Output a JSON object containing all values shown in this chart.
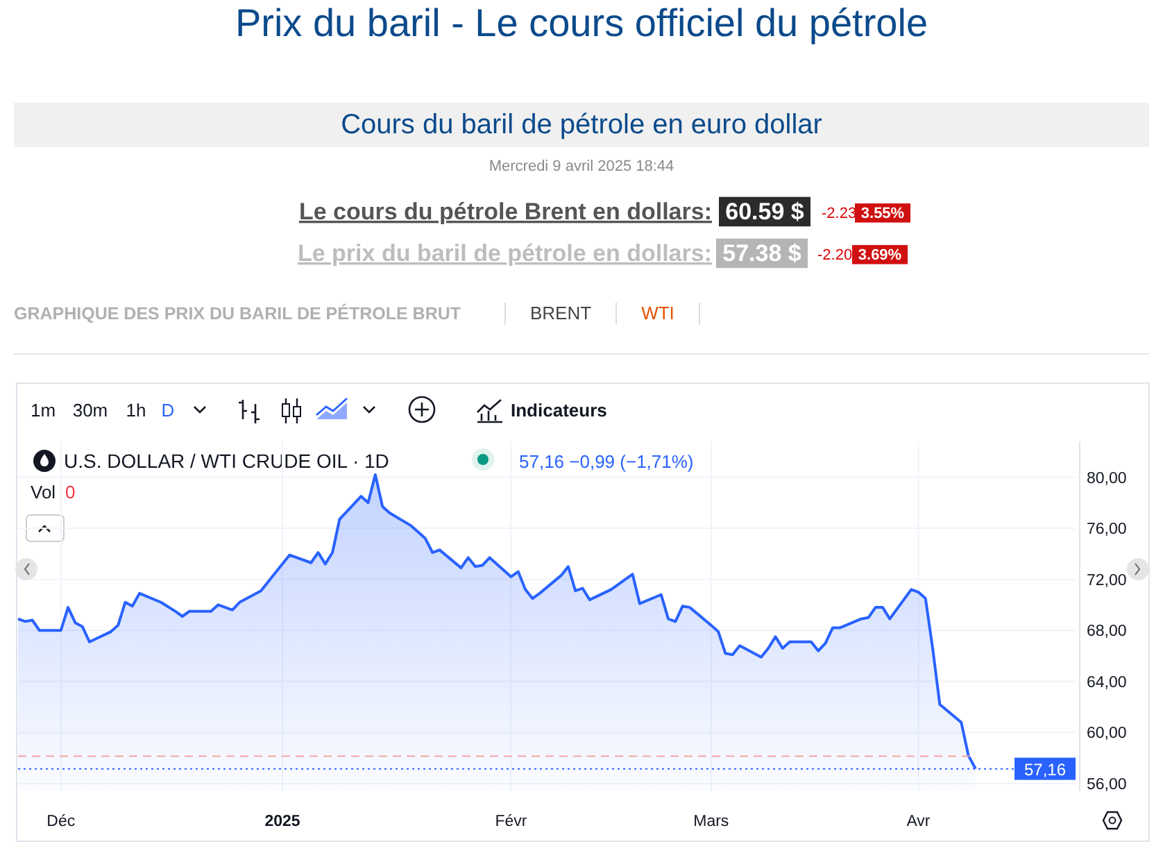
{
  "chart_data": {
    "type": "area",
    "title": "Prix du baril - Le cours officiel du pétrole",
    "subtitle": "Cours du baril de pétrole en euro dollar",
    "annotations": [
      "Mercredi 9 avril 2025 18:44",
      "Le cours du pétrole Brent en dollars:",
      "60.59 $",
      "-2.23",
      "3.55%",
      "Le prix du baril de pétrole en dollars:",
      "57.38 $",
      "-2.20",
      "3.69%",
      "GRAPHIQUE DES PRIX DU BARIL DE PÉTROLE BRUT",
      "BRENT",
      "WTI",
      "1m",
      "30m",
      "1h",
      "D",
      "Indicateurs",
      "U.S. DOLLAR / WTI CRUDE OIL · 1D",
      "57,16 −0,99 (−1,71%)",
      "Vol",
      "0"
    ],
    "x": [
      "2024-11-26",
      "2024-11-27",
      "2024-11-28",
      "2024-11-29",
      "2024-12-02",
      "2024-12-03",
      "2024-12-04",
      "2024-12-05",
      "2024-12-06",
      "2024-12-09",
      "2024-12-10",
      "2024-12-11",
      "2024-12-12",
      "2024-12-13",
      "2024-12-16",
      "2024-12-18",
      "2024-12-19",
      "2024-12-20",
      "2024-12-23",
      "2024-12-24",
      "2024-12-26",
      "2024-12-27",
      "2024-12-30",
      "2024-12-31",
      "2025-01-02",
      "2025-01-03",
      "2025-01-06",
      "2025-01-07",
      "2025-01-08",
      "2025-01-09",
      "2025-01-10",
      "2025-01-13",
      "2025-01-14",
      "2025-01-15",
      "2025-01-16",
      "2025-01-17",
      "2025-01-20",
      "2025-01-21",
      "2025-01-22",
      "2025-01-23",
      "2025-01-24",
      "2025-01-27",
      "2025-01-28",
      "2025-01-29",
      "2025-01-30",
      "2025-01-31",
      "2025-02-03",
      "2025-02-04",
      "2025-02-05",
      "2025-02-06",
      "2025-02-07",
      "2025-02-10",
      "2025-02-11",
      "2025-02-12",
      "2025-02-13",
      "2025-02-14",
      "2025-02-17",
      "2025-02-19",
      "2025-02-20",
      "2025-02-21",
      "2025-02-24",
      "2025-02-25",
      "2025-02-26",
      "2025-02-27",
      "2025-02-28",
      "2025-03-03",
      "2025-03-04",
      "2025-03-05",
      "2025-03-06",
      "2025-03-07",
      "2025-03-10",
      "2025-03-11",
      "2025-03-12",
      "2025-03-13",
      "2025-03-14",
      "2025-03-17",
      "2025-03-18",
      "2025-03-19",
      "2025-03-20",
      "2025-03-21",
      "2025-03-24",
      "2025-03-25",
      "2025-03-26",
      "2025-03-27",
      "2025-03-28",
      "2025-03-31",
      "2025-04-01",
      "2025-04-02",
      "2025-04-03",
      "2025-04-04",
      "2025-04-07",
      "2025-04-08",
      "2025-04-09"
    ],
    "series": [
      {
        "color": "#2962ff",
        "values": [
          68.9,
          68.7,
          68.8,
          68.0,
          68.0,
          69.8,
          68.6,
          68.3,
          67.1,
          67.9,
          68.4,
          70.2,
          69.9,
          70.9,
          70.2,
          69.5,
          69.1,
          69.5,
          69.5,
          70.0,
          69.6,
          70.2,
          71.1,
          71.8,
          73.2,
          73.9,
          73.3,
          74.1,
          73.2,
          74.1,
          76.7,
          78.5,
          78.0,
          80.2,
          77.7,
          77.2,
          76.2,
          75.7,
          75.2,
          74.1,
          74.3,
          72.9,
          73.7,
          73.0,
          73.1,
          73.7,
          72.2,
          72.6,
          71.2,
          70.5,
          70.9,
          72.3,
          73.0,
          71.1,
          71.3,
          70.4,
          71.2,
          72.0,
          72.4,
          70.1,
          70.8,
          68.9,
          68.7,
          69.9,
          69.8,
          68.4,
          67.9,
          66.2,
          66.1,
          66.8,
          65.9,
          66.6,
          67.5,
          66.6,
          67.1,
          67.1,
          66.4,
          67.0,
          68.2,
          68.2,
          68.9,
          69.0,
          69.8,
          69.8,
          68.9,
          71.2,
          71.0,
          70.5,
          66.6,
          62.2,
          60.8,
          58.2,
          57.16
        ]
      }
    ],
    "xlim": [
      "2024-11-26",
      "2025-04-23"
    ],
    "ylim": [
      55.4,
      82.8
    ],
    "xticks": [
      {
        "value": "2024-12-02",
        "label": "Déc"
      },
      {
        "value": "2025-01-02",
        "label": "2025"
      },
      {
        "value": "2025-02-03",
        "label": "Févr"
      },
      {
        "value": "2025-03-03",
        "label": "Mars"
      },
      {
        "value": "2025-04-01",
        "label": "Avr"
      }
    ],
    "yticks": [
      {
        "value": 56,
        "label": "56,00"
      },
      {
        "value": 60,
        "label": "60,00"
      },
      {
        "value": 64,
        "label": "64,00"
      },
      {
        "value": 68,
        "label": "68,00"
      },
      {
        "value": 72,
        "label": "72,00"
      },
      {
        "value": 76,
        "label": "76,00"
      },
      {
        "value": 80,
        "label": "80,00"
      }
    ],
    "grid": true,
    "marker": "none",
    "ref_lines": [
      {
        "axis": "y",
        "value": 58.15,
        "color": "#f4a3a3",
        "line_style": "dashed"
      },
      {
        "axis": "y",
        "value": 57.16,
        "label": "57,16",
        "color": "#2962ff",
        "line_style": "dotted"
      }
    ]
  }
}
